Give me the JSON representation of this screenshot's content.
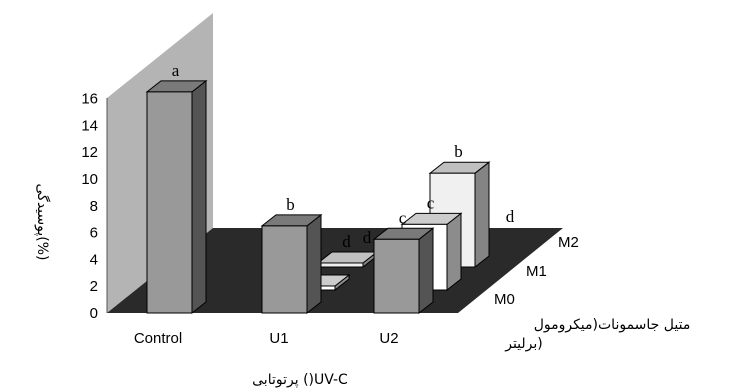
{
  "chart_data": {
    "type": "bar",
    "title": "",
    "xlabel": "پرتوتابی ()UV-C",
    "ylabel": "پوسیدگی(%)",
    "zlabel_line1": "متیل جاسمونات(میکرومول",
    "zlabel_line2": "برلیتر)",
    "ylim": [
      0,
      16
    ],
    "yticks": [
      "0",
      "2",
      "4",
      "6",
      "8",
      "10",
      "12",
      "14",
      "16"
    ],
    "categories": [
      "Control",
      "U1",
      "U2"
    ],
    "series": [
      {
        "name": "M0",
        "color": "#999999",
        "values": [
          16.5,
          6.5,
          5.5
        ],
        "labels": [
          "a",
          "b",
          "c"
        ]
      },
      {
        "name": "M1",
        "color": "#ffffff",
        "values": [
          null,
          0.3,
          4.9
        ],
        "labels": [
          "",
          "",
          "c"
        ]
      },
      {
        "name": "M2",
        "color": "#f0f0f0",
        "values": [
          null,
          0.3,
          7.0
        ],
        "labels": [
          "",
          "d",
          "b"
        ]
      }
    ],
    "extra_labels": [
      "d",
      "d"
    ],
    "wall_color": "#b4b4b4",
    "floor_color": "#2a2a2a"
  }
}
